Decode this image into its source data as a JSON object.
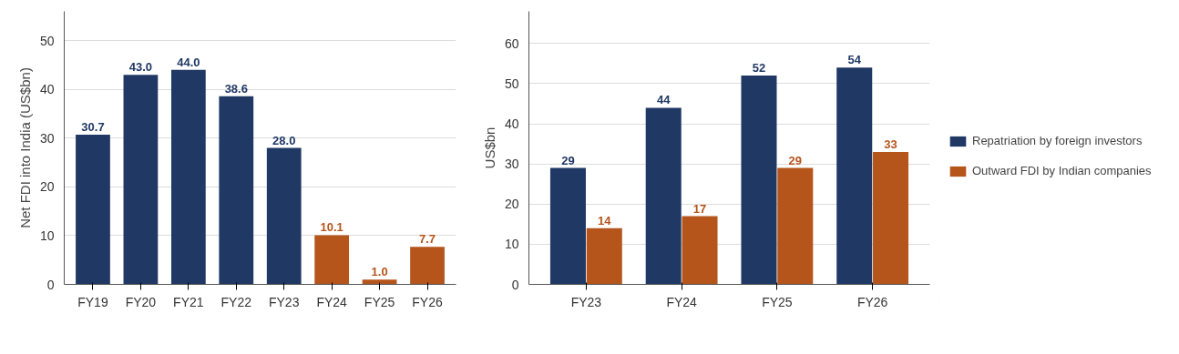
{
  "chart_data": [
    {
      "type": "bar",
      "ylabel": "Net FDI into India (US$bn)",
      "categories": [
        "FY19",
        "FY20",
        "FY21",
        "FY22",
        "FY23",
        "FY24",
        "FY25",
        "FY26"
      ],
      "values": [
        30.7,
        43.0,
        44.0,
        38.6,
        28.0,
        10.1,
        1.0,
        7.7
      ],
      "colors": [
        "#1f3864",
        "#1f3864",
        "#1f3864",
        "#1f3864",
        "#1f3864",
        "#b5541b",
        "#b5541b",
        "#b5541b"
      ],
      "value_labels": [
        "30.7",
        "43.0",
        "44.0",
        "38.6",
        "28.0",
        "10.1",
        "1.0",
        "7.7"
      ],
      "ylim": [
        0,
        56
      ],
      "yticks": [
        0,
        10,
        20,
        30,
        40,
        50
      ],
      "grid": "y"
    },
    {
      "type": "bar",
      "ylabel": "US$bn",
      "categories": [
        "FY23",
        "FY24",
        "FY25",
        "FY26"
      ],
      "series": [
        {
          "name": "Repatriation by foreign investors",
          "color": "#1f3864",
          "values": [
            29,
            44,
            52,
            54
          ]
        },
        {
          "name": "Outward FDI by Indian companies",
          "color": "#b5541b",
          "values": [
            14,
            17,
            29,
            33
          ]
        }
      ],
      "data_labels": true,
      "ylim": [
        0,
        68
      ],
      "yticks": [
        0,
        10,
        20,
        30,
        40,
        50,
        60
      ],
      "grid": "y",
      "legend": "right"
    }
  ]
}
